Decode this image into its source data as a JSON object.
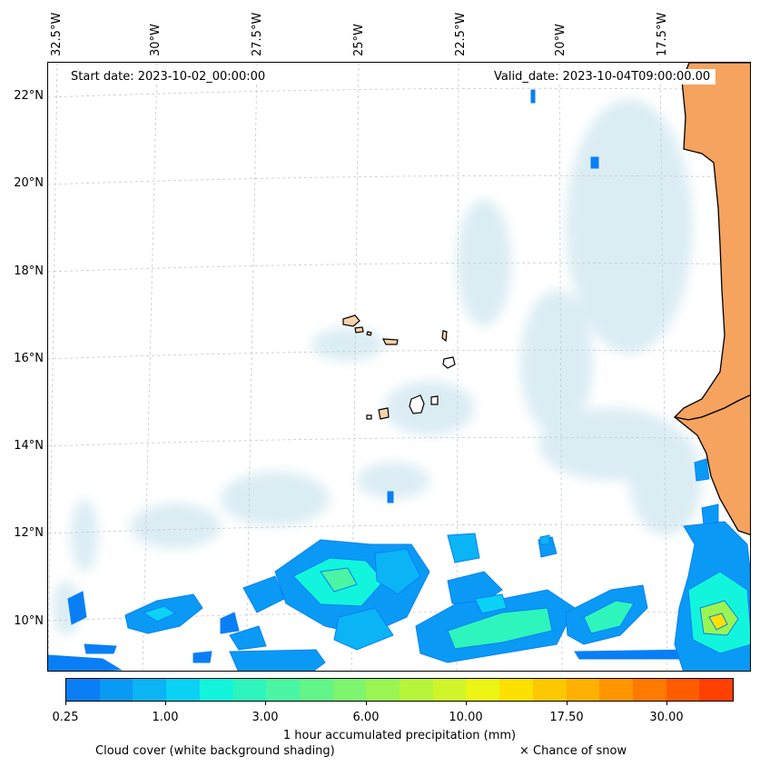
{
  "map": {
    "start_label": "Start date: 2023-10-02_00:00:00",
    "valid_label": "Valid_date: 2023-10-04T09:00:00.00",
    "longitude_labels": [
      "32.5°W",
      "30°W",
      "27.5°W",
      "25°W",
      "22.5°W",
      "20°W",
      "17.5°W"
    ],
    "latitude_labels": [
      "22°N",
      "20°N",
      "18°N",
      "16°N",
      "14°N",
      "12°N",
      "10°N"
    ],
    "colors": {
      "land": "#f5a35f",
      "island": "#f9d2aa",
      "cloud": "#cfe7f0",
      "coast": "#000000"
    }
  },
  "colorbar": {
    "ticks": [
      "0.25",
      "1.00",
      "3.00",
      "6.00",
      "10.00",
      "17.50",
      "30.00"
    ],
    "label": "1 hour accumulated precipitation (mm)",
    "colors": [
      "#0a7ff5",
      "#0a9af5",
      "#0ab4f5",
      "#0ad2f5",
      "#12f5dc",
      "#2ef5bc",
      "#4af5a3",
      "#62f58a",
      "#7ef56e",
      "#9af552",
      "#b6f53a",
      "#d0f52a",
      "#ecf514",
      "#fbe000",
      "#fdc800",
      "#ffb000",
      "#ff9600",
      "#ff7a00",
      "#ff5c00",
      "#ff4000"
    ]
  },
  "legend": {
    "cloud": "Cloud cover (white background shading)",
    "snow": "× Chance of snow"
  }
}
